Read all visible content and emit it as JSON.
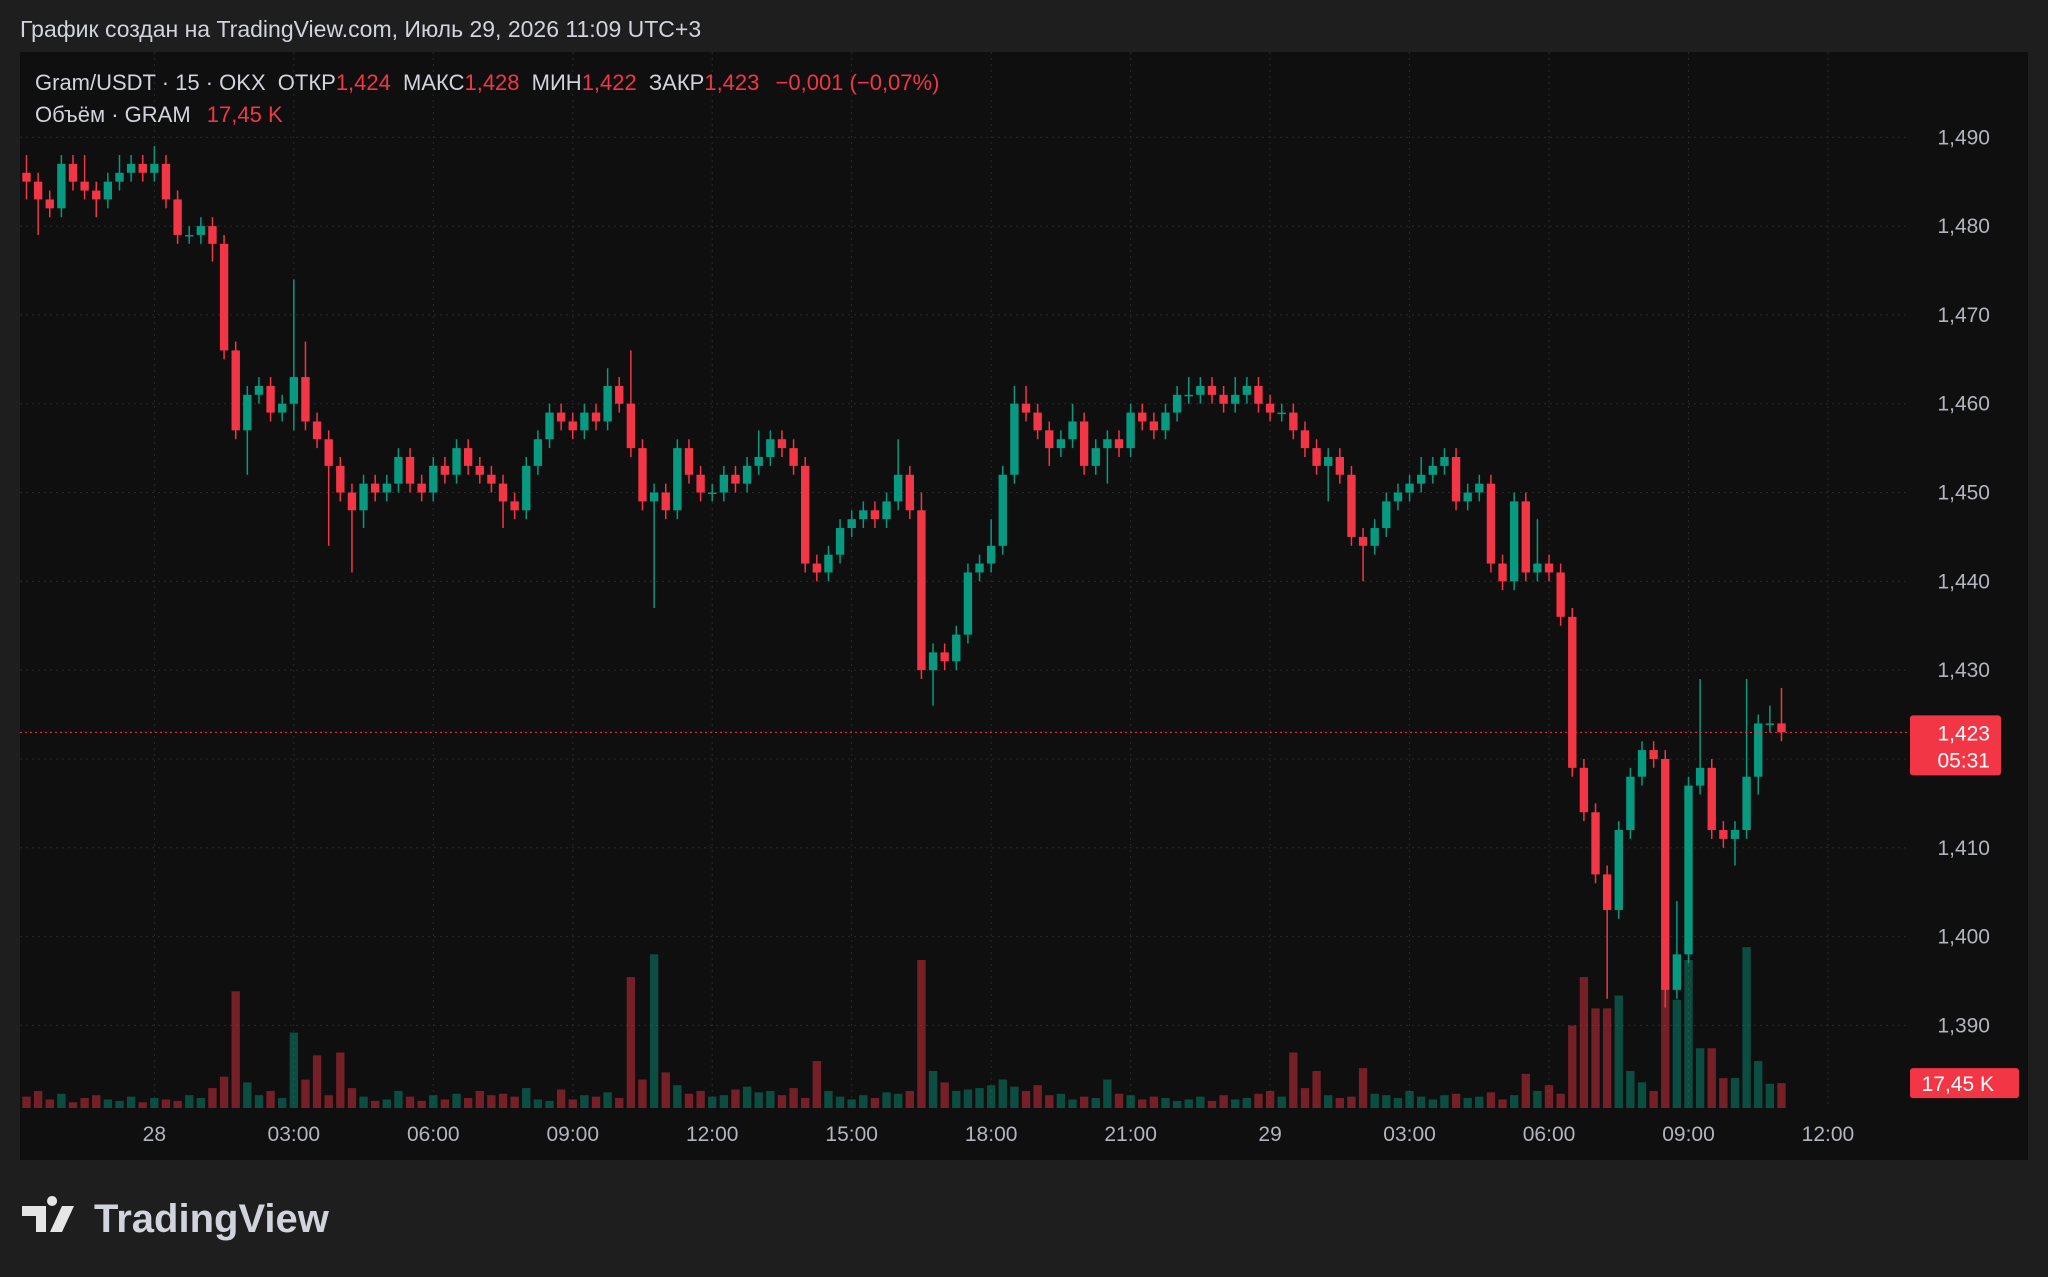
{
  "chart_data": {
    "type": "candlestick",
    "title": "График создан на TradingView.com, Июль 29, 2026 11:09 UTC+3",
    "legend": {
      "symbol": "Gram/USDT · 15 · OKX",
      "open_label": "ОТКР",
      "open": "1,424",
      "high_label": "МАКС",
      "high": "1,428",
      "low_label": "МИН",
      "low": "1,422",
      "close_label": "ЗАКР",
      "close": "1,423",
      "change": "−0,001 (−0,07%)"
    },
    "volume_legend": {
      "label": "Объём · GRAM",
      "value": "17,45 K"
    },
    "logo": "TradingView",
    "up_color": "#089981",
    "down_color": "#f23645",
    "grid": true,
    "xlim": [
      -0.56,
      161.8
    ],
    "xticks": [
      {
        "value": 11,
        "label": "28"
      },
      {
        "value": 23,
        "label": "03:00"
      },
      {
        "value": 35,
        "label": "06:00"
      },
      {
        "value": 47,
        "label": "09:00"
      },
      {
        "value": 59,
        "label": "12:00"
      },
      {
        "value": 71,
        "label": "15:00"
      },
      {
        "value": 83,
        "label": "18:00"
      },
      {
        "value": 95,
        "label": "21:00"
      },
      {
        "value": 107,
        "label": "29"
      },
      {
        "value": 119,
        "label": "03:00"
      },
      {
        "value": 131,
        "label": "06:00"
      },
      {
        "value": 143,
        "label": "09:00"
      },
      {
        "value": 155,
        "label": "12:00"
      }
    ],
    "ylim": [
      1.3807,
      1.4996
    ],
    "yticks": [
      {
        "value": 1.39,
        "label": "1,390"
      },
      {
        "value": 1.4,
        "label": "1,400"
      },
      {
        "value": 1.41,
        "label": "1,410"
      },
      {
        "value": 1.42,
        "label": "1,420"
      },
      {
        "value": 1.43,
        "label": "1,430"
      },
      {
        "value": 1.44,
        "label": "1,440"
      },
      {
        "value": 1.45,
        "label": "1,450"
      },
      {
        "value": 1.46,
        "label": "1,460"
      },
      {
        "value": 1.47,
        "label": "1,470"
      },
      {
        "value": 1.48,
        "label": "1,480"
      },
      {
        "value": 1.49,
        "label": "1,490"
      }
    ],
    "y2lim": [
      0,
      742
    ],
    "last_price_label": "1,423",
    "countdown": "05:31",
    "last_volume_label": "17,45 K",
    "open": [
      1.486,
      1.485,
      1.483,
      1.482,
      1.487,
      1.485,
      1.484,
      1.483,
      1.485,
      1.486,
      1.487,
      1.486,
      1.487,
      1.483,
      1.479,
      1.479,
      1.48,
      1.478,
      1.466,
      1.457,
      1.461,
      1.462,
      1.459,
      1.46,
      1.463,
      1.458,
      1.456,
      1.453,
      1.45,
      1.448,
      1.451,
      1.45,
      1.451,
      1.454,
      1.451,
      1.45,
      1.453,
      1.452,
      1.455,
      1.453,
      1.452,
      1.451,
      1.449,
      1.448,
      1.453,
      1.456,
      1.459,
      1.458,
      1.457,
      1.459,
      1.458,
      1.462,
      1.46,
      1.455,
      1.449,
      1.45,
      1.448,
      1.455,
      1.452,
      1.45,
      1.45,
      1.452,
      1.451,
      1.453,
      1.454,
      1.456,
      1.455,
      1.453,
      1.442,
      1.441,
      1.443,
      1.446,
      1.447,
      1.448,
      1.447,
      1.449,
      1.452,
      1.448,
      1.43,
      1.432,
      1.431,
      1.434,
      1.441,
      1.442,
      1.444,
      1.452,
      1.46,
      1.459,
      1.457,
      1.455,
      1.456,
      1.458,
      1.453,
      1.455,
      1.456,
      1.455,
      1.459,
      1.458,
      1.457,
      1.459,
      1.461,
      1.461,
      1.462,
      1.461,
      1.46,
      1.461,
      1.462,
      1.46,
      1.459,
      1.459,
      1.457,
      1.455,
      1.453,
      1.454,
      1.452,
      1.445,
      1.444,
      1.446,
      1.449,
      1.45,
      1.451,
      1.452,
      1.453,
      1.454,
      1.449,
      1.45,
      1.451,
      1.442,
      1.44,
      1.449,
      1.441,
      1.442,
      1.441,
      1.436,
      1.419,
      1.414,
      1.407,
      1.403,
      1.412,
      1.418,
      1.421,
      1.42,
      1.394,
      1.398,
      1.417,
      1.419,
      1.412,
      1.411,
      1.412,
      1.418,
      1.424,
      1.424
    ],
    "high": [
      1.488,
      1.486,
      1.484,
      1.488,
      1.488,
      1.488,
      1.485,
      1.486,
      1.488,
      1.488,
      1.488,
      1.489,
      1.488,
      1.484,
      1.48,
      1.481,
      1.481,
      1.479,
      1.467,
      1.462,
      1.463,
      1.463,
      1.461,
      1.474,
      1.467,
      1.459,
      1.457,
      1.454,
      1.451,
      1.452,
      1.452,
      1.452,
      1.455,
      1.455,
      1.452,
      1.454,
      1.454,
      1.456,
      1.456,
      1.454,
      1.453,
      1.452,
      1.45,
      1.454,
      1.457,
      1.46,
      1.46,
      1.459,
      1.46,
      1.46,
      1.464,
      1.463,
      1.466,
      1.456,
      1.451,
      1.451,
      1.456,
      1.456,
      1.453,
      1.451,
      1.453,
      1.453,
      1.454,
      1.457,
      1.457,
      1.457,
      1.456,
      1.454,
      1.443,
      1.444,
      1.447,
      1.448,
      1.449,
      1.449,
      1.45,
      1.456,
      1.453,
      1.45,
      1.433,
      1.433,
      1.435,
      1.442,
      1.443,
      1.447,
      1.453,
      1.462,
      1.462,
      1.46,
      1.458,
      1.457,
      1.46,
      1.459,
      1.456,
      1.457,
      1.457,
      1.46,
      1.46,
      1.459,
      1.46,
      1.462,
      1.463,
      1.463,
      1.463,
      1.462,
      1.463,
      1.463,
      1.463,
      1.461,
      1.46,
      1.46,
      1.458,
      1.456,
      1.455,
      1.455,
      1.453,
      1.446,
      1.447,
      1.45,
      1.451,
      1.452,
      1.454,
      1.454,
      1.455,
      1.455,
      1.451,
      1.452,
      1.452,
      1.443,
      1.45,
      1.45,
      1.447,
      1.443,
      1.442,
      1.437,
      1.42,
      1.415,
      1.408,
      1.413,
      1.419,
      1.422,
      1.422,
      1.421,
      1.404,
      1.418,
      1.429,
      1.42,
      1.413,
      1.413,
      1.429,
      1.425,
      1.426,
      1.428
    ],
    "low": [
      1.483,
      1.479,
      1.481,
      1.481,
      1.484,
      1.483,
      1.481,
      1.482,
      1.484,
      1.485,
      1.485,
      1.485,
      1.482,
      1.478,
      1.478,
      1.478,
      1.476,
      1.465,
      1.456,
      1.452,
      1.46,
      1.458,
      1.458,
      1.457,
      1.457,
      1.455,
      1.444,
      1.449,
      1.441,
      1.446,
      1.449,
      1.449,
      1.45,
      1.45,
      1.449,
      1.449,
      1.451,
      1.451,
      1.452,
      1.451,
      1.45,
      1.446,
      1.447,
      1.447,
      1.452,
      1.455,
      1.457,
      1.456,
      1.456,
      1.457,
      1.457,
      1.459,
      1.454,
      1.448,
      1.437,
      1.447,
      1.447,
      1.451,
      1.449,
      1.449,
      1.449,
      1.45,
      1.45,
      1.452,
      1.453,
      1.454,
      1.452,
      1.441,
      1.44,
      1.44,
      1.442,
      1.445,
      1.446,
      1.446,
      1.446,
      1.448,
      1.447,
      1.429,
      1.426,
      1.43,
      1.43,
      1.433,
      1.44,
      1.441,
      1.443,
      1.451,
      1.458,
      1.456,
      1.453,
      1.454,
      1.455,
      1.452,
      1.452,
      1.451,
      1.454,
      1.454,
      1.457,
      1.456,
      1.456,
      1.458,
      1.46,
      1.46,
      1.46,
      1.459,
      1.459,
      1.46,
      1.459,
      1.458,
      1.458,
      1.456,
      1.454,
      1.452,
      1.449,
      1.451,
      1.444,
      1.44,
      1.443,
      1.445,
      1.448,
      1.449,
      1.45,
      1.451,
      1.452,
      1.448,
      1.448,
      1.449,
      1.441,
      1.439,
      1.439,
      1.44,
      1.44,
      1.44,
      1.435,
      1.418,
      1.413,
      1.406,
      1.393,
      1.402,
      1.411,
      1.417,
      1.419,
      1.392,
      1.393,
      1.397,
      1.416,
      1.411,
      1.41,
      1.408,
      1.411,
      1.416,
      1.423,
      1.422
    ],
    "close": [
      1.485,
      1.483,
      1.482,
      1.487,
      1.485,
      1.484,
      1.483,
      1.485,
      1.486,
      1.487,
      1.486,
      1.487,
      1.483,
      1.479,
      1.479,
      1.48,
      1.478,
      1.466,
      1.457,
      1.461,
      1.462,
      1.459,
      1.46,
      1.463,
      1.458,
      1.456,
      1.453,
      1.45,
      1.448,
      1.451,
      1.45,
      1.451,
      1.454,
      1.451,
      1.45,
      1.453,
      1.452,
      1.455,
      1.453,
      1.452,
      1.451,
      1.449,
      1.448,
      1.453,
      1.456,
      1.459,
      1.458,
      1.457,
      1.459,
      1.458,
      1.462,
      1.46,
      1.455,
      1.449,
      1.45,
      1.448,
      1.455,
      1.452,
      1.45,
      1.45,
      1.452,
      1.451,
      1.453,
      1.454,
      1.456,
      1.455,
      1.453,
      1.442,
      1.441,
      1.443,
      1.446,
      1.447,
      1.448,
      1.447,
      1.449,
      1.452,
      1.448,
      1.43,
      1.432,
      1.431,
      1.434,
      1.441,
      1.442,
      1.444,
      1.452,
      1.46,
      1.459,
      1.457,
      1.455,
      1.456,
      1.458,
      1.453,
      1.455,
      1.456,
      1.455,
      1.459,
      1.458,
      1.457,
      1.459,
      1.461,
      1.461,
      1.462,
      1.461,
      1.46,
      1.461,
      1.462,
      1.46,
      1.459,
      1.459,
      1.457,
      1.455,
      1.453,
      1.454,
      1.452,
      1.445,
      1.444,
      1.446,
      1.449,
      1.45,
      1.451,
      1.452,
      1.453,
      1.454,
      1.449,
      1.45,
      1.451,
      1.442,
      1.44,
      1.449,
      1.441,
      1.442,
      1.441,
      1.436,
      1.419,
      1.414,
      1.407,
      1.403,
      1.412,
      1.418,
      1.421,
      1.42,
      1.394,
      1.398,
      1.417,
      1.419,
      1.412,
      1.411,
      1.412,
      1.418,
      1.424,
      1.424,
      1.423
    ],
    "volume": {
      "axis": "y2",
      "values": [
        8,
        12,
        6,
        10,
        4,
        7,
        9,
        6,
        5,
        8,
        4,
        7,
        6,
        5,
        9,
        7,
        14,
        22,
        82,
        18,
        9,
        12,
        7,
        53,
        20,
        37,
        9,
        39,
        14,
        8,
        5,
        6,
        12,
        8,
        5,
        9,
        6,
        10,
        7,
        12,
        9,
        10,
        8,
        14,
        6,
        5,
        13,
        6,
        9,
        8,
        11,
        7,
        92,
        20,
        108,
        25,
        16,
        10,
        12,
        8,
        9,
        13,
        15,
        11,
        12,
        9,
        14,
        7,
        33,
        12,
        8,
        6,
        9,
        7,
        11,
        10,
        12,
        104,
        26,
        18,
        12,
        13,
        14,
        16,
        20,
        15,
        12,
        16,
        9,
        10,
        6,
        8,
        7,
        20,
        10,
        9,
        6,
        8,
        7,
        5,
        6,
        8,
        5,
        9,
        6,
        7,
        10,
        12,
        8,
        39,
        14,
        26,
        9,
        7,
        8,
        28,
        10,
        9,
        7,
        12,
        8,
        6,
        9,
        10,
        7,
        8,
        11,
        6,
        9,
        24,
        12,
        16,
        10,
        58,
        92,
        70,
        70,
        79,
        26,
        18,
        12,
        104,
        76,
        104,
        42,
        42,
        21,
        21,
        113,
        33,
        17,
        17.45
      ]
    }
  }
}
